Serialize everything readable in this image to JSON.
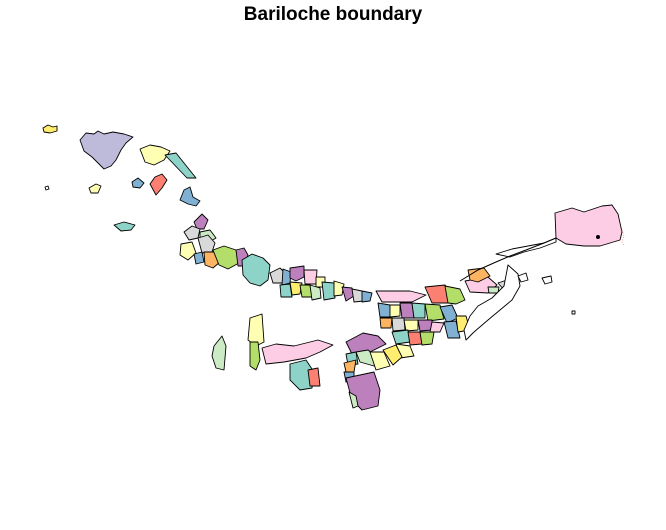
{
  "title": "Bariloche boundary",
  "palette": {
    "teal": "#8DD3C7",
    "yellow": "#FFFFB3",
    "lavender": "#BEBADA",
    "red": "#FB8072",
    "blue": "#80B1D3",
    "orange": "#FDB462",
    "green": "#B3DE69",
    "pink": "#FCCDE5",
    "grey": "#D9D9D9",
    "purple": "#BC80BD",
    "mint": "#CCEBC5",
    "lemon": "#FFED6F",
    "white": "#FFFFFF"
  }
}
